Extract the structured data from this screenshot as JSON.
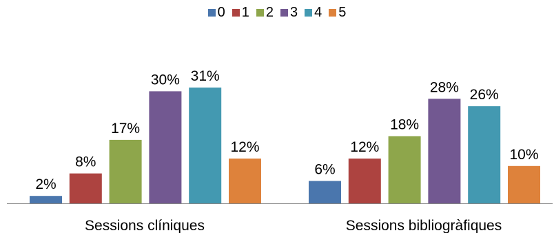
{
  "chart_data": {
    "type": "bar",
    "categories": [
      "Sessions clíniques",
      "Sessions bibliogràfiques"
    ],
    "series": [
      {
        "name": "0",
        "values": [
          2,
          6
        ],
        "labels": [
          "2%",
          "6%"
        ],
        "color": "#4a76ad"
      },
      {
        "name": "1",
        "values": [
          8,
          12
        ],
        "labels": [
          "8%",
          "12%"
        ],
        "color": "#ad4340"
      },
      {
        "name": "2",
        "values": [
          17,
          18
        ],
        "labels": [
          "17%",
          "18%"
        ],
        "color": "#8ea64b"
      },
      {
        "name": "3",
        "values": [
          30,
          28
        ],
        "labels": [
          "30%",
          "28%"
        ],
        "color": "#725891"
      },
      {
        "name": "4",
        "values": [
          31,
          26
        ],
        "labels": [
          "31%",
          "26%"
        ],
        "color": "#4399b1"
      },
      {
        "name": "5",
        "values": [
          12,
          10
        ],
        "labels": [
          "12%",
          "10%"
        ],
        "color": "#de823b"
      }
    ],
    "ylim": [
      0,
      31
    ],
    "legend_position": "top",
    "grid": false
  }
}
